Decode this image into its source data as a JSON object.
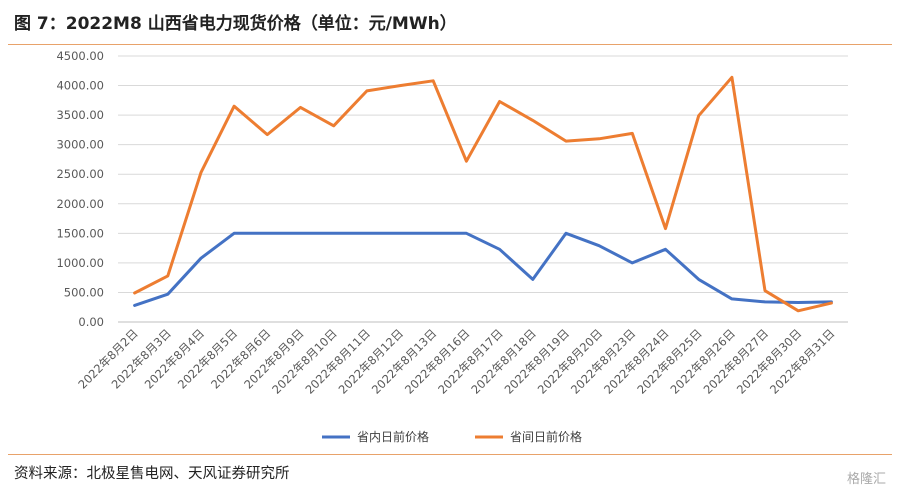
{
  "header": {
    "title": "图 7：2022M8 山西省电力现货价格（单位：元/MWh）"
  },
  "footer": {
    "source": "资料来源：北极星售电网、天风证券研究所",
    "watermark": "格隆汇"
  },
  "chart_data": {
    "type": "line",
    "title": "",
    "xlabel": "",
    "ylabel": "",
    "ylim": [
      0,
      4500
    ],
    "yticks": [
      "0.00",
      "500.00",
      "1000.00",
      "1500.00",
      "2000.00",
      "2500.00",
      "3000.00",
      "3500.00",
      "4000.00",
      "4500.00"
    ],
    "grid": true,
    "legend_position": "bottom",
    "categories": [
      "2022年8月2日",
      "2022年8月3日",
      "2022年8月4日",
      "2022年8月5日",
      "2022年8月6日",
      "2022年8月9日",
      "2022年8月10日",
      "2022年8月11日",
      "2022年8月12日",
      "2022年8月13日",
      "2022年8月16日",
      "2022年8月17日",
      "2022年8月18日",
      "2022年8月19日",
      "2022年8月20日",
      "2022年8月23日",
      "2022年8月24日",
      "2022年8月25日",
      "2022年8月26日",
      "2022年8月27日",
      "2022年8月30日",
      "2022年8月31日"
    ],
    "series": [
      {
        "name": "省内日前价格",
        "color": "#4472c4",
        "values": [
          280,
          470,
          1080,
          1500,
          1500,
          1500,
          1500,
          1500,
          1500,
          1500,
          1500,
          1230,
          720,
          1500,
          1290,
          1000,
          1230,
          720,
          390,
          340,
          330,
          340
        ]
      },
      {
        "name": "省间日前价格",
        "color": "#ed7d31",
        "values": [
          490,
          780,
          2530,
          3650,
          3170,
          3630,
          3320,
          3910,
          4000,
          4080,
          2720,
          3730,
          3410,
          3060,
          3100,
          3190,
          1580,
          3490,
          4140,
          530,
          190,
          320
        ]
      }
    ]
  }
}
